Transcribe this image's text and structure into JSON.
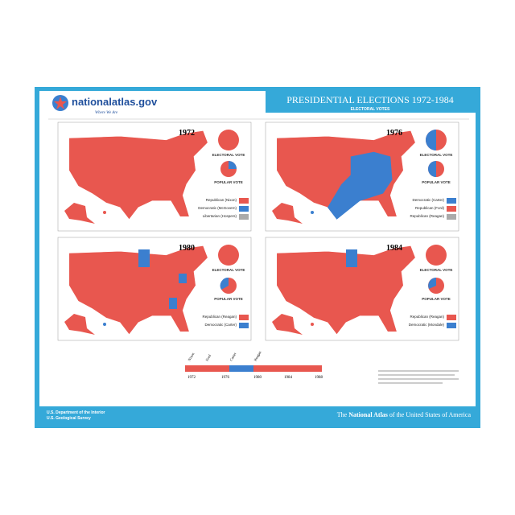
{
  "header": {
    "logo": "nationalatlas.gov",
    "tagline": "Where We Are",
    "title": "PRESIDENTIAL ELECTIONS 1972-1984",
    "subtitle": "ELECTORAL VOTES"
  },
  "panels": [
    {
      "year": "1972",
      "electoral": "ELECTORAL VOTE",
      "popular": "POPULAR VOTE",
      "legend": [
        "Republican (Nixon)",
        "Democratic (McGovern)",
        "Libertarian (Hospers)"
      ]
    },
    {
      "year": "1976",
      "electoral": "ELECTORAL VOTE",
      "popular": "POPULAR VOTE",
      "legend": [
        "Democratic (Carter)",
        "Republican (Ford)",
        "Republican (Reagan)"
      ]
    },
    {
      "year": "1980",
      "electoral": "ELECTORAL VOTE",
      "popular": "POPULAR VOTE",
      "legend": [
        "Republican (Reagan)",
        "Democratic (Carter)"
      ]
    },
    {
      "year": "1984",
      "electoral": "ELECTORAL VOTE",
      "popular": "POPULAR VOTE",
      "legend": [
        "Republican (Reagan)",
        "Democratic (Mondale)"
      ]
    }
  ],
  "timeline": {
    "names": [
      "Nixon",
      "Ford",
      "Carter",
      "Reagan"
    ],
    "years": [
      "1972",
      "1976",
      "1980",
      "1984",
      "1988"
    ]
  },
  "footer": {
    "agency": [
      "U.S. Department of the Interior",
      "U.S. Geological Survey"
    ],
    "atlas": [
      "The ",
      "National Atlas",
      " of the United States of America"
    ]
  }
}
